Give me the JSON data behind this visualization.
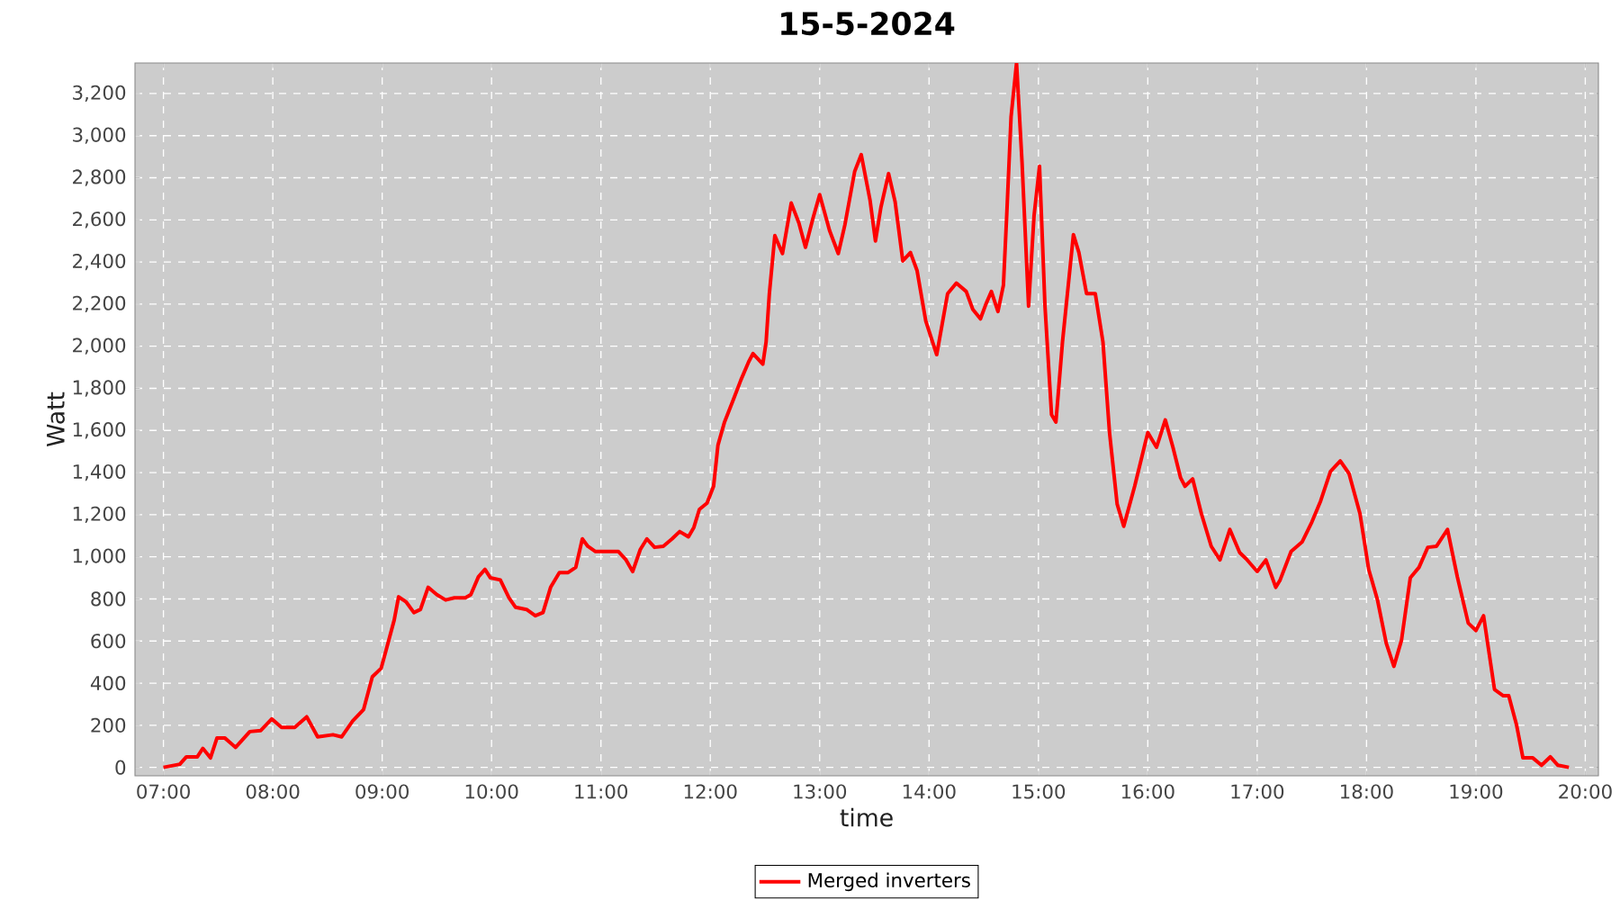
{
  "chart_data": {
    "type": "line",
    "title": "15-5-2024",
    "xlabel": "time",
    "ylabel": "Watt",
    "xlim": [
      6.74,
      20.12
    ],
    "ylim": [
      -40,
      3345
    ],
    "xticks": [
      {
        "value": 7,
        "label": "07:00"
      },
      {
        "value": 8,
        "label": "08:00"
      },
      {
        "value": 9,
        "label": "09:00"
      },
      {
        "value": 10,
        "label": "10:00"
      },
      {
        "value": 11,
        "label": "11:00"
      },
      {
        "value": 12,
        "label": "12:00"
      },
      {
        "value": 13,
        "label": "13:00"
      },
      {
        "value": 14,
        "label": "14:00"
      },
      {
        "value": 15,
        "label": "15:00"
      },
      {
        "value": 16,
        "label": "16:00"
      },
      {
        "value": 17,
        "label": "17:00"
      },
      {
        "value": 18,
        "label": "18:00"
      },
      {
        "value": 19,
        "label": "19:00"
      },
      {
        "value": 20,
        "label": "20:00"
      }
    ],
    "yticks": [
      0,
      200,
      400,
      600,
      800,
      {
        "value": 1000,
        "label": "1,000"
      },
      {
        "value": 1200,
        "label": "1,200"
      },
      {
        "value": 1400,
        "label": "1,400"
      },
      {
        "value": 1600,
        "label": "1,600"
      },
      {
        "value": 1800,
        "label": "1,800"
      },
      {
        "value": 2000,
        "label": "2,000"
      },
      {
        "value": 2200,
        "label": "2,200"
      },
      {
        "value": 2400,
        "label": "2,400"
      },
      {
        "value": 2600,
        "label": "2,600"
      },
      {
        "value": 2800,
        "label": "2,800"
      },
      {
        "value": 3000,
        "label": "3,000"
      },
      {
        "value": 3200,
        "label": "3,200"
      }
    ],
    "grid": true,
    "legend": "bottom",
    "marker": "none",
    "line_style": "solid",
    "series": [
      {
        "name": "Merged inverters",
        "color": "#ff0000",
        "x": [
          7.0,
          7.15,
          7.21,
          7.31,
          7.36,
          7.43,
          7.49,
          7.56,
          7.66,
          7.79,
          7.89,
          7.99,
          8.08,
          8.2,
          8.31,
          8.41,
          8.55,
          8.63,
          8.73,
          8.83,
          8.91,
          8.99,
          9.04,
          9.11,
          9.15,
          9.22,
          9.29,
          9.35,
          9.42,
          9.5,
          9.58,
          9.66,
          9.76,
          9.81,
          9.88,
          9.94,
          9.99,
          10.08,
          10.16,
          10.22,
          10.32,
          10.4,
          10.47,
          10.54,
          10.62,
          10.7,
          10.77,
          10.83,
          10.88,
          10.95,
          11.03,
          11.16,
          11.23,
          11.29,
          11.36,
          11.42,
          11.49,
          11.57,
          11.65,
          11.72,
          11.8,
          11.85,
          11.9,
          11.97,
          12.03,
          12.07,
          12.13,
          12.21,
          12.28,
          12.35,
          12.39,
          12.48,
          12.51,
          12.54,
          12.59,
          12.66,
          12.74,
          12.81,
          12.87,
          12.94,
          13.0,
          13.09,
          13.17,
          13.23,
          13.32,
          13.38,
          13.46,
          13.51,
          13.56,
          13.63,
          13.69,
          13.76,
          13.83,
          13.89,
          13.97,
          14.07,
          14.12,
          14.17,
          14.25,
          14.34,
          14.4,
          14.47,
          14.52,
          14.57,
          14.63,
          14.68,
          14.71,
          14.75,
          14.8,
          14.85,
          14.91,
          14.96,
          15.01,
          15.06,
          15.12,
          15.16,
          15.22,
          15.27,
          15.32,
          15.37,
          15.44,
          15.52,
          15.59,
          15.65,
          15.72,
          15.78,
          15.88,
          16.0,
          16.08,
          16.16,
          16.23,
          16.3,
          16.34,
          16.41,
          16.49,
          16.58,
          16.66,
          16.75,
          16.84,
          16.9,
          17.0,
          17.08,
          17.17,
          17.21,
          17.31,
          17.41,
          17.5,
          17.58,
          17.67,
          17.76,
          17.84,
          17.94,
          18.02,
          18.1,
          18.18,
          18.25,
          18.32,
          18.4,
          18.48,
          18.56,
          18.64,
          18.74,
          18.83,
          18.93,
          19.0,
          19.07,
          19.17,
          19.25,
          19.3,
          19.37,
          19.43,
          19.52,
          19.6,
          19.68,
          19.75,
          19.85
        ],
        "values": [
          0,
          15,
          50,
          50,
          90,
          45,
          140,
          140,
          95,
          170,
          175,
          230,
          190,
          190,
          240,
          145,
          155,
          145,
          220,
          275,
          430,
          470,
          565,
          700,
          810,
          785,
          735,
          750,
          855,
          820,
          795,
          805,
          805,
          820,
          905,
          940,
          900,
          890,
          805,
          760,
          750,
          720,
          735,
          855,
          925,
          925,
          950,
          1085,
          1050,
          1025,
          1025,
          1025,
          985,
          930,
          1035,
          1085,
          1045,
          1050,
          1085,
          1120,
          1095,
          1140,
          1225,
          1255,
          1335,
          1530,
          1640,
          1745,
          1840,
          1925,
          1965,
          1915,
          2020,
          2250,
          2525,
          2440,
          2680,
          2585,
          2470,
          2610,
          2720,
          2550,
          2440,
          2575,
          2830,
          2910,
          2695,
          2500,
          2660,
          2820,
          2685,
          2405,
          2445,
          2360,
          2120,
          1960,
          2105,
          2250,
          2300,
          2260,
          2175,
          2130,
          2200,
          2260,
          2165,
          2290,
          2620,
          3090,
          3345,
          2875,
          2190,
          2620,
          2855,
          2190,
          1675,
          1640,
          2020,
          2275,
          2530,
          2445,
          2250,
          2250,
          2020,
          1590,
          1250,
          1145,
          1335,
          1590,
          1520,
          1650,
          1520,
          1375,
          1335,
          1370,
          1205,
          1050,
          985,
          1130,
          1020,
          990,
          930,
          985,
          855,
          890,
          1025,
          1070,
          1165,
          1265,
          1405,
          1455,
          1395,
          1205,
          940,
          795,
          590,
          480,
          605,
          900,
          950,
          1045,
          1050,
          1130,
          905,
          685,
          650,
          720,
          370,
          340,
          340,
          205,
          45,
          45,
          10,
          50,
          10,
          0
        ]
      }
    ]
  }
}
